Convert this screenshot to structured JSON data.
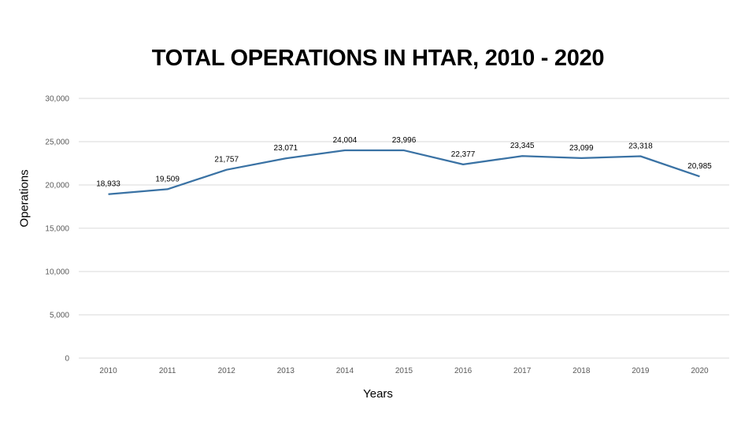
{
  "chart_data": {
    "type": "line",
    "title": "TOTAL OPERATIONS IN HTAR, 2010 - 2020",
    "xlabel": "Years",
    "ylabel": "Operations",
    "categories": [
      "2010",
      "2011",
      "2012",
      "2013",
      "2014",
      "2015",
      "2016",
      "2017",
      "2018",
      "2019",
      "2020"
    ],
    "values": [
      18933,
      19509,
      21757,
      23071,
      24004,
      23996,
      22377,
      23345,
      23099,
      23318,
      20985
    ],
    "data_labels": [
      "18,933",
      "19,509",
      "21,757",
      "23,071",
      "24,004",
      "23,996",
      "22,377",
      "23,345",
      "23,099",
      "23,318",
      "20,985"
    ],
    "y_ticks": [
      "0",
      "5,000",
      "10,000",
      "15,000",
      "20,000",
      "25,000",
      "30,000"
    ],
    "ylim": [
      0,
      30000
    ],
    "y_tick_step": 5000,
    "grid": true,
    "legend": "none",
    "line_color": "#3a72a4",
    "grid_color": "#d9d9d9"
  }
}
